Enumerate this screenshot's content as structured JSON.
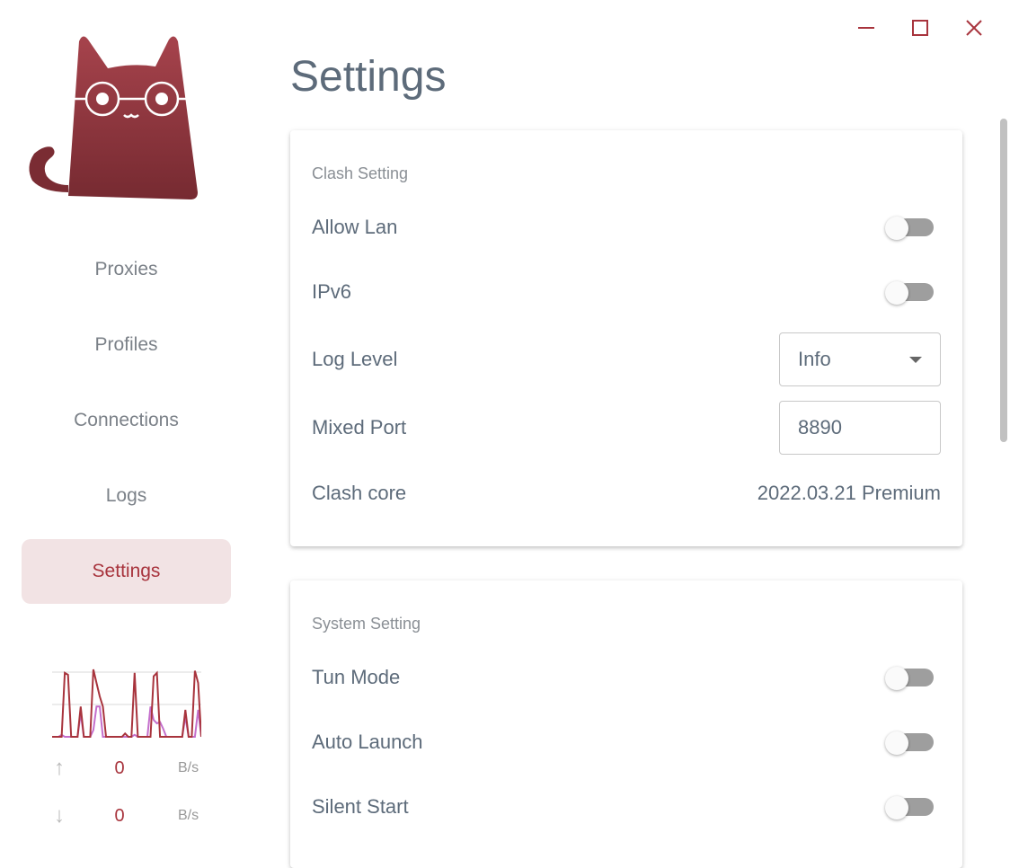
{
  "window": {
    "minimize_icon": "minimize-icon",
    "maximize_icon": "maximize-icon",
    "close_icon": "close-icon"
  },
  "sidebar": {
    "items": [
      {
        "label": "Proxies"
      },
      {
        "label": "Profiles"
      },
      {
        "label": "Connections"
      },
      {
        "label": "Logs"
      },
      {
        "label": "Settings",
        "active": true
      }
    ],
    "traffic": {
      "upload": {
        "value": "0",
        "unit": "B/s"
      },
      "download": {
        "value": "0",
        "unit": "B/s"
      },
      "series": [
        {
          "color": "#a8343d",
          "values": [
            0,
            0,
            0,
            0,
            95,
            92,
            0,
            0,
            0,
            45,
            0,
            0,
            0,
            100,
            80,
            60,
            45,
            0,
            0,
            0,
            0,
            0,
            0,
            5,
            0,
            0,
            95,
            0,
            0,
            0,
            0,
            0,
            90,
            95,
            0,
            0,
            0,
            0,
            0,
            0,
            0,
            0,
            40,
            0,
            0,
            98,
            80,
            0
          ]
        },
        {
          "color": "#c46fcc",
          "values": [
            0,
            0,
            0,
            3,
            0,
            0,
            0,
            0,
            0,
            35,
            0,
            0,
            0,
            10,
            45,
            45,
            0,
            0,
            0,
            0,
            0,
            0,
            0,
            0,
            0,
            0,
            3,
            0,
            0,
            0,
            0,
            45,
            25,
            20,
            22,
            12,
            0,
            0,
            0,
            0,
            0,
            0,
            30,
            0,
            0,
            0,
            40,
            0
          ]
        }
      ]
    }
  },
  "page_title": "Settings",
  "clash_setting": {
    "title": "Clash Setting",
    "allow_lan": {
      "label": "Allow Lan",
      "on": false
    },
    "ipv6": {
      "label": "IPv6",
      "on": false
    },
    "log_level": {
      "label": "Log Level",
      "value": "Info"
    },
    "mixed_port": {
      "label": "Mixed Port",
      "value": "8890"
    },
    "clash_core": {
      "label": "Clash core",
      "value": "2022.03.21 Premium"
    }
  },
  "system_setting": {
    "title": "System Setting",
    "tun_mode": {
      "label": "Tun Mode",
      "on": false
    },
    "auto_launch": {
      "label": "Auto Launch",
      "on": false
    },
    "silent_start": {
      "label": "Silent Start",
      "on": false
    }
  },
  "colors": {
    "accent": "#a8343d",
    "text": "#5d6b7a"
  }
}
